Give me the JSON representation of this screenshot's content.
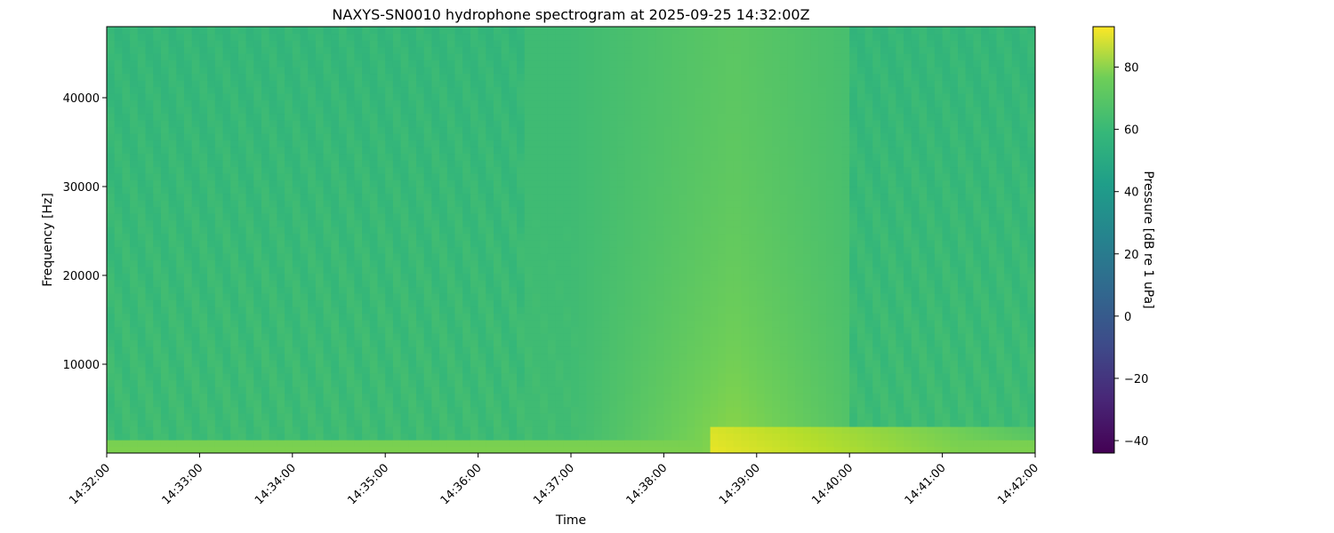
{
  "chart_data": {
    "type": "heatmap",
    "title": "NAXYS-SN0010 hydrophone spectrogram at 2025-09-25 14:32:00Z",
    "xlabel": "Time",
    "ylabel": "Frequency [Hz]",
    "colorbar_label": "Pressure [dB re 1 uPa]",
    "colormap": "viridis",
    "x_range": [
      "14:32:00",
      "14:42:00"
    ],
    "x_ticks": [
      "14:32:00",
      "14:33:00",
      "14:34:00",
      "14:35:00",
      "14:36:00",
      "14:37:00",
      "14:38:00",
      "14:39:00",
      "14:40:00",
      "14:41:00",
      "14:42:00"
    ],
    "ylim": [
      0,
      48000
    ],
    "y_ticks": [
      10000,
      20000,
      30000,
      40000
    ],
    "y_tick_labels": [
      "10000",
      "20000",
      "30000",
      "40000"
    ],
    "clim": [
      -44,
      93
    ],
    "colorbar_ticks": [
      -40,
      -20,
      0,
      20,
      40,
      60,
      80
    ],
    "colorbar_tick_labels": [
      "−40",
      "−20",
      "0",
      "20",
      "40",
      "60",
      "80"
    ],
    "background_level_db": 50,
    "features": [
      {
        "description": "broadband noise fan centred near 14:38:45",
        "time_start": "14:36:30",
        "time_end": "14:40:00",
        "peak_db": 70
      },
      {
        "description": "strong low-frequency band below ~3000 Hz",
        "time_start": "14:38:30",
        "time_end": "14:42:00",
        "freq_max_hz": 3000,
        "peak_db": 85
      },
      {
        "description": "continuous low-frequency band near 500-1000 Hz",
        "time_start": "14:32:00",
        "time_end": "14:42:00",
        "peak_db": 68
      }
    ]
  }
}
